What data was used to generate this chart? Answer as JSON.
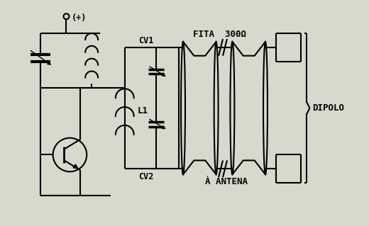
{
  "bg_color": "#d8d8cc",
  "lw": 1.5,
  "labels": {
    "plus": "(+)",
    "cv1": "CV1",
    "cv2": "CV2",
    "l1": "L1",
    "fita": "FITA  300Ω",
    "antena": "À ANTENA",
    "dipolo": "DIPOLO"
  },
  "figsize": [
    5.2,
    3.19
  ],
  "dpi": 100
}
